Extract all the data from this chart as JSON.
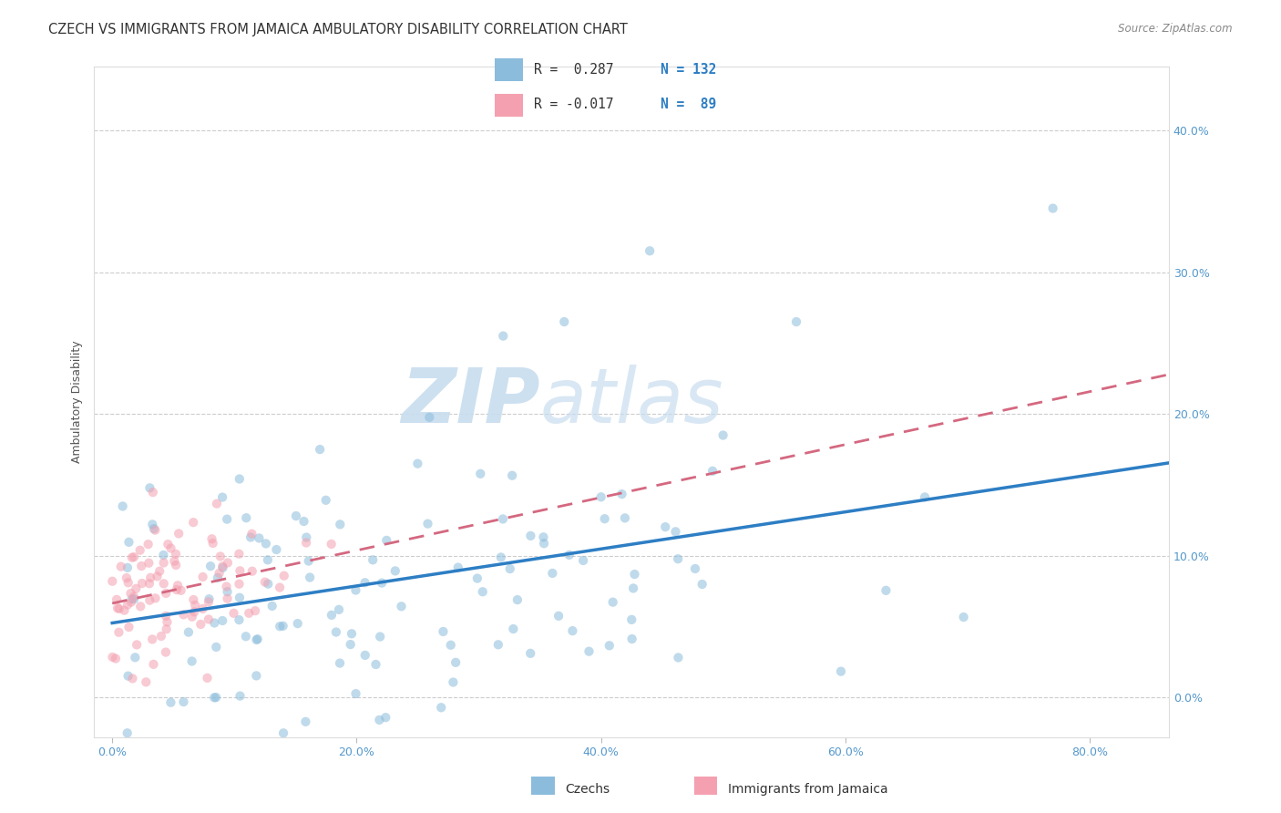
{
  "title": "CZECH VS IMMIGRANTS FROM JAMAICA AMBULATORY DISABILITY CORRELATION CHART",
  "source": "Source: ZipAtlas.com",
  "ylabel": "Ambulatory Disability",
  "xlabel_ticks": [
    "0.0%",
    "20.0%",
    "40.0%",
    "60.0%",
    "80.0%"
  ],
  "xlabel_vals": [
    0.0,
    0.2,
    0.4,
    0.6,
    0.8
  ],
  "ylabel_ticks": [
    "0.0%",
    "10.0%",
    "20.0%",
    "30.0%",
    "40.0%"
  ],
  "ylabel_vals": [
    0.0,
    0.1,
    0.2,
    0.3,
    0.4
  ],
  "xlim": [
    -0.015,
    0.865
  ],
  "ylim": [
    -0.028,
    0.445
  ],
  "czech_color": "#8BBCDC",
  "czech_color_line": "#2D7EC4",
  "jamaica_color": "#F4A0B0",
  "jamaica_color_line": "#D46880",
  "czech_R": 0.287,
  "czech_N": 132,
  "jamaica_R": -0.017,
  "jamaica_N": 89,
  "watermark_zip": "ZIP",
  "watermark_atlas": "atlas",
  "background_color": "#ffffff",
  "grid_color": "#cccccc",
  "title_fontsize": 10.5,
  "axis_fontsize": 9,
  "marker_size": 55,
  "alpha": 0.55,
  "seed_czech": 7,
  "seed_jamaica": 13
}
